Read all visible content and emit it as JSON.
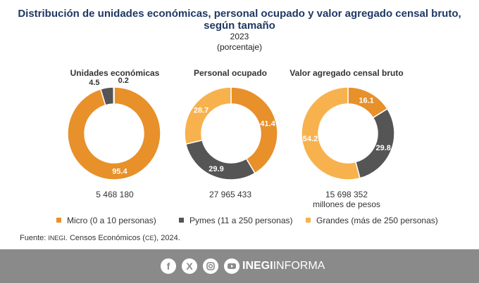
{
  "header": {
    "title_line1": "Distribución de unidades económicas, personal ocupado y valor agregado censal bruto,",
    "title_line2": "según tamaño",
    "year": "2023",
    "unit": "(porcentaje)"
  },
  "colors": {
    "micro": "#e8902a",
    "pymes": "#555555",
    "grandes": "#f7b24e"
  },
  "chart_data": [
    {
      "type": "pie",
      "title": "Unidades económicas",
      "categories": [
        "Micro (0 a 10 personas)",
        "Pymes (11 a 250 personas)",
        "Grandes (más de 250 personas)"
      ],
      "values": [
        95.4,
        4.5,
        0.2
      ],
      "labels": [
        "95.4",
        "4.5",
        "0.2"
      ],
      "total": "5 468 180",
      "total_unit": ""
    },
    {
      "type": "pie",
      "title": "Personal ocupado",
      "categories": [
        "Micro (0 a 10 personas)",
        "Pymes (11 a 250 personas)",
        "Grandes (más de 250 personas)"
      ],
      "values": [
        41.4,
        29.9,
        28.7
      ],
      "labels": [
        "41.4",
        "29.9",
        "28.7"
      ],
      "total": "27 965 433",
      "total_unit": ""
    },
    {
      "type": "pie",
      "title": "Valor agregado censal bruto",
      "categories": [
        "Micro (0 a 10 personas)",
        "Pymes (11 a 250 personas)",
        "Grandes (más de 250 personas)"
      ],
      "values": [
        16.1,
        29.8,
        54.2
      ],
      "labels": [
        "16.1",
        "29.8",
        "54.2"
      ],
      "total": "15 698 352",
      "total_unit": "millones de pesos"
    }
  ],
  "legend": {
    "micro": "Micro (0 a 10 personas)",
    "pymes": "Pymes (11 a 250 personas)",
    "grandes": "Grandes (más de 250 personas)"
  },
  "source": {
    "prefix": "Fuente: ",
    "org": "INEGI",
    "text": ". Censos Económicos (",
    "abbr": "CE",
    "suffix": "), 2024."
  },
  "footer": {
    "icons": [
      "facebook-icon",
      "x-icon",
      "instagram-icon",
      "youtube-icon"
    ],
    "brand_bold": "INEGI",
    "brand_light": "INFORMA"
  }
}
